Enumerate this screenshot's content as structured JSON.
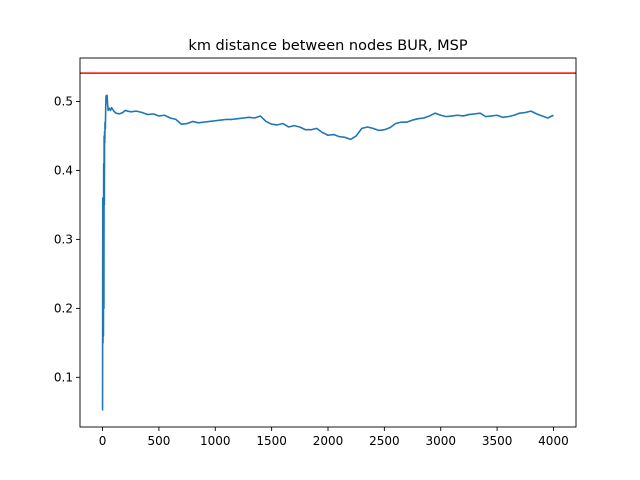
{
  "chart_data": {
    "type": "line",
    "title": "km distance between nodes BUR, MSP",
    "xlabel": "",
    "ylabel": "",
    "xlim": [
      -200,
      4200
    ],
    "ylim": [
      0.028,
      0.563
    ],
    "grid": false,
    "x_ticks": [
      0,
      500,
      1000,
      1500,
      2000,
      2500,
      3000,
      3500,
      4000
    ],
    "y_ticks": [
      0.1,
      0.2,
      0.3,
      0.4,
      0.5
    ],
    "reference_line": {
      "y": 0.541,
      "color": "#ff0000"
    },
    "series": [
      {
        "color": "#1f77b4",
        "x": [
          0,
          2,
          4,
          6,
          8,
          10,
          12,
          14,
          16,
          18,
          20,
          22,
          25,
          28,
          31,
          35,
          40,
          45,
          50,
          60,
          70,
          80,
          100,
          120,
          150,
          180,
          200,
          250,
          300,
          350,
          400,
          450,
          500,
          550,
          600,
          650,
          700,
          750,
          800,
          850,
          900,
          950,
          1000,
          1050,
          1100,
          1150,
          1200,
          1250,
          1300,
          1350,
          1400,
          1450,
          1500,
          1550,
          1600,
          1650,
          1700,
          1750,
          1800,
          1850,
          1900,
          1950,
          2000,
          2050,
          2100,
          2150,
          2200,
          2250,
          2300,
          2350,
          2400,
          2450,
          2500,
          2550,
          2600,
          2650,
          2700,
          2750,
          2800,
          2850,
          2900,
          2950,
          3000,
          3050,
          3100,
          3150,
          3200,
          3250,
          3300,
          3350,
          3400,
          3450,
          3500,
          3550,
          3600,
          3650,
          3700,
          3750,
          3800,
          3850,
          3900,
          3950,
          4000
        ],
        "values": [
          0.052,
          0.36,
          0.15,
          0.33,
          0.16,
          0.41,
          0.2,
          0.45,
          0.35,
          0.456,
          0.44,
          0.47,
          0.46,
          0.49,
          0.508,
          0.506,
          0.509,
          0.496,
          0.487,
          0.49,
          0.487,
          0.491,
          0.486,
          0.483,
          0.482,
          0.484,
          0.487,
          0.485,
          0.486,
          0.484,
          0.481,
          0.482,
          0.479,
          0.48,
          0.476,
          0.474,
          0.467,
          0.468,
          0.471,
          0.469,
          0.47,
          0.471,
          0.472,
          0.473,
          0.474,
          0.474,
          0.475,
          0.476,
          0.477,
          0.476,
          0.479,
          0.471,
          0.467,
          0.466,
          0.468,
          0.463,
          0.465,
          0.463,
          0.459,
          0.459,
          0.461,
          0.455,
          0.451,
          0.452,
          0.449,
          0.448,
          0.445,
          0.45,
          0.461,
          0.463,
          0.461,
          0.458,
          0.459,
          0.462,
          0.468,
          0.47,
          0.47,
          0.473,
          0.475,
          0.476,
          0.479,
          0.483,
          0.48,
          0.478,
          0.479,
          0.48,
          0.479,
          0.481,
          0.482,
          0.483,
          0.478,
          0.479,
          0.48,
          0.477,
          0.478,
          0.48,
          0.483,
          0.484,
          0.486,
          0.482,
          0.479,
          0.476,
          0.48
        ]
      }
    ]
  }
}
